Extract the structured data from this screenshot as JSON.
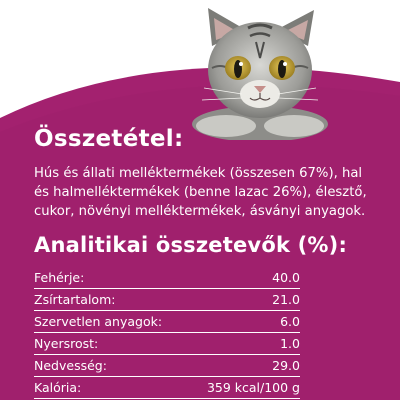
{
  "composition": {
    "heading": "Összetétel:",
    "text": "Hús és állati melléktermékek (összesen 67%), hal és halmelléktermékek (benne lazac 26%), élesztő, cukor, növényi melléktermékek, ásványi anyagok."
  },
  "analysis": {
    "heading": "Analitikai összetevők (%):",
    "rows": [
      {
        "label": "Fehérje:",
        "value": "40.0"
      },
      {
        "label": "Zsírtartalom:",
        "value": "21.0"
      },
      {
        "label": "Szervetlen anyagok:",
        "value": "6.0"
      },
      {
        "label": "Nyersrost:",
        "value": "1.0"
      },
      {
        "label": "Nedvesség:",
        "value": "29.0"
      },
      {
        "label": "Kalória:",
        "value": "359 kcal/100 g"
      }
    ]
  },
  "colors": {
    "background": "#a3216f",
    "text": "#ffffff"
  },
  "image": "tabby-cat-photo"
}
